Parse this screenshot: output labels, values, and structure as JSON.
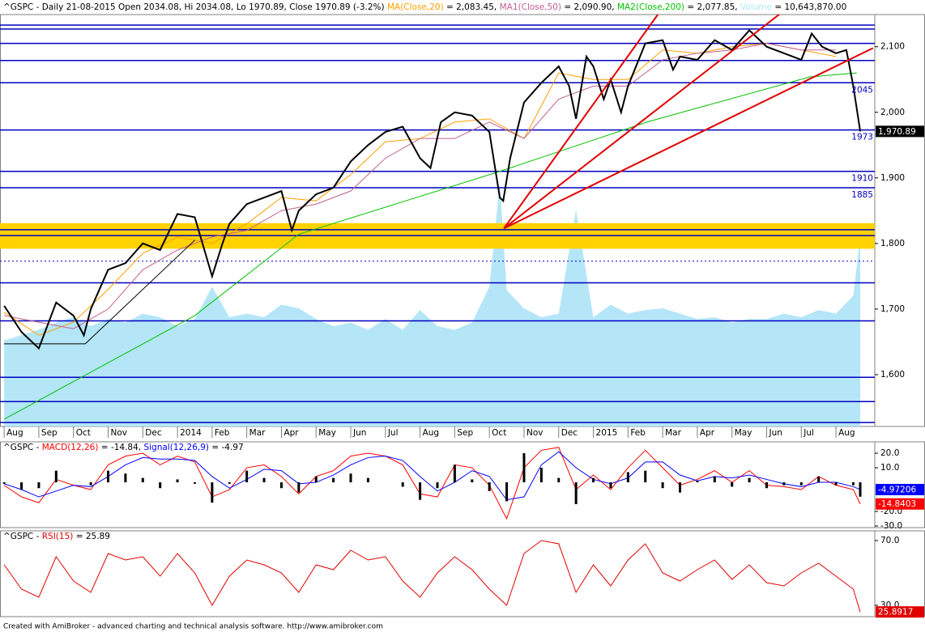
{
  "chart_data": [
    {
      "type": "line",
      "title": "^GSPC - Daily 21-08-2015 Open 2034.08, Hi 2034.08, Lo 1970.89, Close 1970.89 (-3.2%) ",
      "xlim": [
        -0.12,
        25.12
      ],
      "xticks": [
        {
          "value": 0,
          "label": "Aug"
        },
        {
          "value": 1,
          "label": "Sep"
        },
        {
          "value": 2,
          "label": "Oct"
        },
        {
          "value": 3,
          "label": "Nov"
        },
        {
          "value": 4,
          "label": "Dec"
        },
        {
          "value": 5,
          "label": "2014"
        },
        {
          "value": 6,
          "label": "Feb"
        },
        {
          "value": 7,
          "label": "Mar"
        },
        {
          "value": 8,
          "label": "Apr"
        },
        {
          "value": 9,
          "label": "May"
        },
        {
          "value": 10,
          "label": "Jun"
        },
        {
          "value": 11,
          "label": "Jul"
        },
        {
          "value": 12,
          "label": "Aug"
        },
        {
          "value": 13,
          "label": "Sep"
        },
        {
          "value": 14,
          "label": "Oct"
        },
        {
          "value": 15,
          "label": "Nov"
        },
        {
          "value": 16,
          "label": "Dec"
        },
        {
          "value": 17,
          "label": "2015"
        },
        {
          "value": 18,
          "label": "Feb"
        },
        {
          "value": 19,
          "label": "Mar"
        },
        {
          "value": 20,
          "label": "Apr"
        },
        {
          "value": 21,
          "label": "May"
        },
        {
          "value": 22,
          "label": "Jun"
        },
        {
          "value": 23,
          "label": "Jul"
        },
        {
          "value": 24,
          "label": "Aug"
        }
      ],
      "ylim": [
        1521,
        2149
      ],
      "yticks": [
        {
          "value": 1600,
          "label": "1,600"
        },
        {
          "value": 1700,
          "label": "1,700"
        },
        {
          "value": 1800,
          "label": "1,800"
        },
        {
          "value": 1900,
          "label": "1,900"
        },
        {
          "value": 2000,
          "label": "2,000"
        },
        {
          "value": 2100,
          "label": "2,100"
        }
      ],
      "y2lim": [
        0,
        23000000
      ],
      "band": {
        "values": [
          1792,
          1831
        ],
        "color": "#ffd200"
      },
      "levels": [
        2133,
        2127,
        2105,
        2079,
        {
          "value": 2045,
          "label": "2045"
        },
        {
          "value": 1973,
          "label": "1973"
        },
        {
          "value": 1910,
          "label": "1910"
        },
        {
          "value": 1885,
          "label": "1885"
        },
        1821,
        1812,
        1740,
        1682,
        1596,
        1559,
        1527
      ],
      "dotted_levels": [
        1773
      ],
      "level_color": "#0000c0",
      "trendlines": [
        {
          "x": [
            14.42,
            18.86
          ],
          "y": [
            1823,
            2149
          ],
          "color": "#e00000"
        },
        {
          "x": [
            14.42,
            22.43
          ],
          "y": [
            1823,
            2152
          ],
          "color": "#e00000"
        },
        {
          "x": [
            14.42,
            25.07
          ],
          "y": [
            1823,
            2098
          ],
          "color": "#e00000"
        },
        {
          "x": [
            0,
            2.34
          ],
          "y": [
            1647,
            1647
          ],
          "color": "#000000"
        },
        {
          "x": [
            2.34,
            5.5
          ],
          "y": [
            1647,
            1805
          ],
          "color": "#000000"
        }
      ],
      "series": [
        {
          "name": "MA(Close,20)",
          "legend_value": " = 2,083.45, ",
          "color": "#ffa000",
          "x": [
            0,
            1,
            2,
            3,
            4,
            5,
            6,
            7,
            8,
            9,
            10,
            11,
            12,
            13,
            14,
            15,
            16,
            17,
            18,
            19,
            20,
            21,
            22,
            23,
            24
          ],
          "values": [
            1695,
            1660,
            1680,
            1730,
            1785,
            1810,
            1800,
            1830,
            1870,
            1865,
            1905,
            1955,
            1960,
            1985,
            1990,
            1960,
            2060,
            2050,
            2050,
            2095,
            2090,
            2100,
            2105,
            2095,
            2085
          ]
        },
        {
          "name": "MA1(Close,50)",
          "legend_value": " = 2,090.90, ",
          "color": "#c06090",
          "x": [
            0,
            1,
            2,
            3,
            4,
            5,
            6,
            7,
            8,
            9,
            10,
            11,
            12,
            13,
            14,
            15,
            16,
            17,
            18,
            19,
            20,
            21,
            22,
            23,
            24
          ],
          "values": [
            1690,
            1680,
            1670,
            1700,
            1760,
            1790,
            1810,
            1820,
            1850,
            1860,
            1880,
            1930,
            1960,
            1960,
            1985,
            1960,
            2020,
            2040,
            2040,
            2080,
            2090,
            2095,
            2105,
            2095,
            2095
          ]
        },
        {
          "name": "MA2(Close,200)",
          "legend_value": " = 2,077.85, ",
          "color": "#00c000",
          "x": [
            0,
            5.5,
            8.5,
            14.25,
            18.6,
            23.25,
            24.6
          ],
          "values": [
            1532,
            1690,
            1814,
            1909,
            1986,
            2054,
            2060
          ]
        },
        {
          "name": "Volume",
          "legend_value": " = 10,643,870.00",
          "color": "#b4e6f8",
          "type": "area",
          "axis": "y2",
          "x": [
            0,
            0.5,
            1,
            1.5,
            2,
            2.5,
            3,
            3.5,
            4,
            4.5,
            5,
            5.5,
            6,
            6.5,
            7,
            7.5,
            8,
            8.5,
            9,
            9.5,
            10,
            10.5,
            11,
            11.5,
            12,
            12.5,
            13,
            13.5,
            14,
            14.3,
            14.5,
            15,
            15.5,
            16,
            16.5,
            17,
            17.5,
            18,
            18.5,
            19,
            19.5,
            20,
            20.5,
            21,
            21.5,
            22,
            22.5,
            23,
            23.5,
            24,
            24.5,
            24.7
          ],
          "values": [
            4800000,
            5100000,
            5400000,
            5800000,
            6100000,
            5600000,
            6000000,
            5800000,
            6300000,
            6100000,
            5600000,
            6000000,
            7800000,
            6100000,
            6300000,
            6100000,
            6800000,
            6600000,
            6000000,
            5600000,
            5800000,
            5400000,
            6000000,
            5400000,
            6500000,
            5600000,
            5400000,
            5800000,
            7800000,
            13600000,
            7600000,
            6600000,
            6100000,
            6300000,
            12100000,
            6100000,
            6800000,
            6300000,
            6500000,
            6600000,
            6300000,
            6000000,
            6100000,
            5800000,
            6000000,
            6000000,
            6300000,
            6100000,
            6500000,
            6300000,
            7300000,
            10643870
          ]
        },
        {
          "color": "#000000",
          "line_width": 2,
          "x": [
            0,
            0.5,
            1,
            1.5,
            2,
            2.3,
            2.5,
            3,
            3.5,
            4,
            4.5,
            5,
            5.5,
            6,
            6.3,
            6.5,
            7,
            7.5,
            8,
            8.3,
            8.5,
            9,
            9.5,
            10,
            10.5,
            11,
            11.5,
            12,
            12.3,
            12.6,
            13,
            13.5,
            14,
            14.3,
            14.4,
            14.6,
            15,
            15.5,
            16,
            16.3,
            16.5,
            16.8,
            17,
            17.3,
            17.5,
            17.8,
            18,
            18.5,
            19,
            19.3,
            19.5,
            20,
            20.5,
            21,
            21.5,
            22,
            22.5,
            23,
            23.3,
            23.6,
            24,
            24.3,
            24.5,
            24.7
          ],
          "values": [
            1705,
            1665,
            1640,
            1710,
            1690,
            1660,
            1700,
            1760,
            1770,
            1800,
            1790,
            1845,
            1840,
            1750,
            1800,
            1830,
            1860,
            1870,
            1880,
            1820,
            1850,
            1875,
            1885,
            1925,
            1950,
            1970,
            1978,
            1930,
            1915,
            1985,
            2000,
            1995,
            1970,
            1870,
            1865,
            1930,
            2015,
            2045,
            2070,
            2040,
            1990,
            2085,
            2070,
            2020,
            2050,
            2000,
            2040,
            2105,
            2110,
            2065,
            2085,
            2080,
            2110,
            2095,
            2125,
            2100,
            2090,
            2080,
            2120,
            2100,
            2090,
            2095,
            2040,
            1970.89
          ],
          "badge": {
            "value": 1970.89,
            "label": "1,970.89"
          }
        }
      ]
    },
    {
      "type": "line",
      "title": "^GSPC - ",
      "xlim": [
        -0.12,
        25.12
      ],
      "ylim": [
        -31.1,
        27.8
      ],
      "yticks": [
        {
          "value": 20,
          "label": "20.0"
        },
        {
          "value": 10,
          "label": "10.0"
        },
        {
          "value": -20,
          "label": "-20.0"
        },
        {
          "value": -30,
          "label": "-30.0"
        }
      ],
      "x": [
        0,
        0.5,
        1,
        1.5,
        2,
        2.5,
        3,
        3.5,
        4,
        4.5,
        5,
        5.5,
        6,
        6.5,
        7,
        7.5,
        8,
        8.5,
        9,
        9.5,
        10,
        10.5,
        11,
        11.5,
        12,
        12.5,
        13,
        13.5,
        14,
        14.5,
        15,
        15.5,
        16,
        16.5,
        17,
        17.5,
        18,
        18.5,
        19,
        19.5,
        20,
        20.5,
        21,
        21.5,
        22,
        22.5,
        23,
        23.5,
        24,
        24.5,
        24.7
      ],
      "series": [
        {
          "name": "MACD(12,26)",
          "legend_value": " = -14.84, ",
          "color": "#ff0000",
          "values": [
            -2,
            -10,
            -14,
            2,
            -2,
            -5,
            12,
            18,
            20,
            12,
            18,
            14,
            -10,
            -5,
            10,
            12,
            4,
            -8,
            4,
            8,
            18,
            20,
            18,
            12,
            -8,
            -10,
            12,
            10,
            -2,
            -25,
            10,
            22,
            24,
            -5,
            5,
            -5,
            10,
            22,
            10,
            -2,
            2,
            8,
            0,
            8,
            -2,
            -3,
            -5,
            4,
            -2,
            -5,
            -14.84
          ],
          "badge": {
            "value": -14.8403,
            "label": "-14.8403"
          }
        },
        {
          "name": "Signal(12,26,9)",
          "legend_value": " = -4.97",
          "color": "#0000ff",
          "values": [
            -1,
            -5,
            -10,
            -6,
            -2,
            -3,
            4,
            12,
            17,
            16,
            16,
            15,
            4,
            -4,
            2,
            9,
            8,
            -1,
            0,
            5,
            12,
            17,
            18,
            15,
            4,
            -6,
            0,
            8,
            4,
            -12,
            -10,
            12,
            21,
            10,
            2,
            -1,
            3,
            14,
            14,
            5,
            1,
            4,
            3,
            5,
            2,
            -1,
            -3,
            0,
            0,
            -3,
            -4.97
          ],
          "badge": {
            "value": -4.97206,
            "label": "-4.97206"
          }
        },
        {
          "type": "bar",
          "color": "#000000",
          "values": [
            -1,
            -5,
            -4,
            8,
            0,
            -2,
            8,
            6,
            3,
            -4,
            2,
            -1,
            -14,
            -1,
            8,
            3,
            -4,
            -7,
            4,
            3,
            6,
            3,
            0,
            -3,
            -12,
            -4,
            12,
            2,
            -6,
            -13,
            20,
            10,
            3,
            -15,
            3,
            -4,
            7,
            8,
            -4,
            -7,
            1,
            4,
            -3,
            3,
            -4,
            -2,
            -2,
            4,
            -2,
            -2,
            -9.87
          ]
        }
      ]
    },
    {
      "type": "line",
      "title": "^GSPC - ",
      "xlim": [
        -0.12,
        25.12
      ],
      "ylim": [
        23,
        76
      ],
      "yticks": [
        {
          "value": 70,
          "label": "70.0"
        },
        {
          "value": 30,
          "label": "30.0"
        }
      ],
      "x": [
        0,
        0.5,
        1,
        1.5,
        2,
        2.5,
        3,
        3.5,
        4,
        4.5,
        5,
        5.5,
        6,
        6.5,
        7,
        7.5,
        8,
        8.5,
        9,
        9.5,
        10,
        10.5,
        11,
        11.5,
        12,
        12.5,
        13,
        13.5,
        14,
        14.5,
        15,
        15.5,
        16,
        16.5,
        17,
        17.5,
        18,
        18.5,
        19,
        19.5,
        20,
        20.5,
        21,
        21.5,
        22,
        22.5,
        23,
        23.5,
        24,
        24.5,
        24.7
      ],
      "series": [
        {
          "name": "RSI(15)",
          "legend_value": " = 25.89",
          "color": "#e00000",
          "values": [
            55,
            40,
            35,
            60,
            45,
            38,
            62,
            58,
            60,
            48,
            62,
            50,
            30,
            48,
            58,
            55,
            50,
            38,
            55,
            52,
            64,
            58,
            60,
            45,
            35,
            50,
            60,
            52,
            40,
            30,
            62,
            70,
            68,
            38,
            55,
            42,
            58,
            68,
            50,
            45,
            52,
            58,
            46,
            55,
            44,
            42,
            50,
            56,
            48,
            40,
            25.89
          ],
          "badge": {
            "value": 25.8917,
            "label": "25.8917"
          }
        }
      ]
    }
  ],
  "footer": "Created with AmiBroker - advanced charting and technical analysis software. http://www.amibroker.com"
}
